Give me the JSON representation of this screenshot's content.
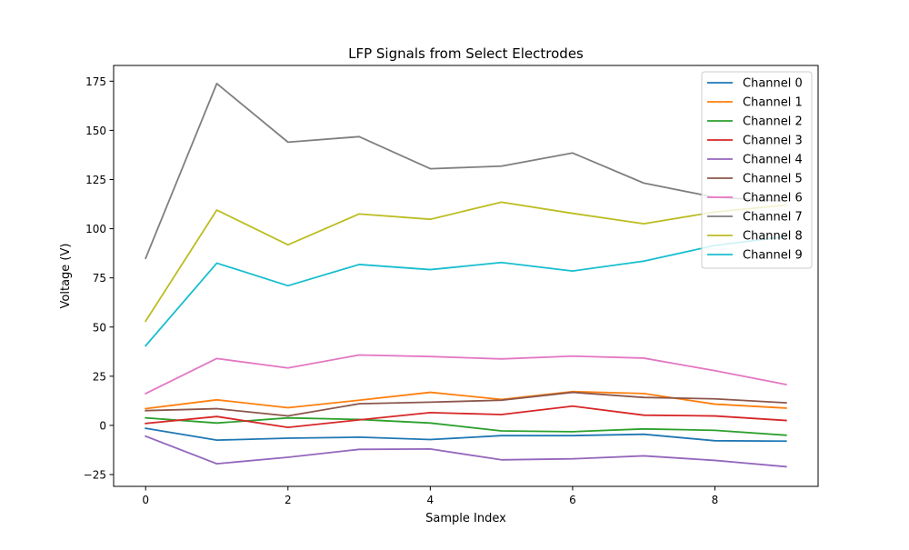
{
  "chart_data": {
    "type": "line",
    "title": "LFP Signals from Select Electrodes",
    "xlabel": "Sample Index",
    "ylabel": "Voltage (V)",
    "xlim": [
      -0.45,
      9.45
    ],
    "ylim": [
      -31,
      183
    ],
    "x_ticks": [
      0,
      2,
      4,
      6,
      8
    ],
    "y_ticks": [
      -25,
      0,
      25,
      50,
      75,
      100,
      125,
      150,
      175
    ],
    "grid": false,
    "legend_position": "top-right",
    "x": [
      0,
      1,
      2,
      3,
      4,
      5,
      6,
      7,
      8,
      9
    ],
    "series": [
      {
        "name": "Channel 0",
        "color": "#1f77b4",
        "values": [
          -1.5,
          -7.5,
          -6.5,
          -6,
          -7.2,
          -5.2,
          -5.2,
          -4.5,
          -7.8,
          -8
        ]
      },
      {
        "name": "Channel 1",
        "color": "#ff7f0e",
        "values": [
          8.5,
          13,
          9,
          12.8,
          16.8,
          13.2,
          17.2,
          16.2,
          10.8,
          8.8
        ]
      },
      {
        "name": "Channel 2",
        "color": "#2ca02c",
        "values": [
          3.8,
          1.2,
          3.8,
          3,
          1.2,
          -2.8,
          -3.2,
          -1.8,
          -2.5,
          -5
        ]
      },
      {
        "name": "Channel 3",
        "color": "#d62728",
        "values": [
          1,
          4.5,
          -1,
          2.8,
          6.5,
          5.5,
          9.8,
          5.2,
          4.8,
          2.5
        ]
      },
      {
        "name": "Channel 4",
        "color": "#9467bd",
        "values": [
          -5.5,
          -19.5,
          -16.2,
          -12.2,
          -12,
          -17.5,
          -17,
          -15.5,
          -17.8,
          -21
        ]
      },
      {
        "name": "Channel 5",
        "color": "#8c564b",
        "values": [
          7.5,
          8.5,
          4.8,
          11,
          11.8,
          12.8,
          16.8,
          14.2,
          13.5,
          11.5
        ]
      },
      {
        "name": "Channel 6",
        "color": "#e377c2",
        "values": [
          16.2,
          34,
          29.2,
          35.8,
          35,
          33.8,
          35.2,
          34.2,
          27.8,
          20.8
        ]
      },
      {
        "name": "Channel 7",
        "color": "#7f7f7f",
        "values": [
          85,
          173.8,
          144,
          146.8,
          130.5,
          131.8,
          138.5,
          123.2,
          116,
          114
        ]
      },
      {
        "name": "Channel 8",
        "color": "#bcbd22",
        "values": [
          53,
          109.5,
          91.8,
          107.5,
          104.8,
          113.5,
          107.8,
          102.5,
          108.5,
          112
        ]
      },
      {
        "name": "Channel 9",
        "color": "#17becf",
        "values": [
          40.5,
          82.5,
          71,
          81.8,
          79.2,
          82.8,
          78.5,
          83.5,
          91.5,
          96
        ]
      }
    ]
  }
}
